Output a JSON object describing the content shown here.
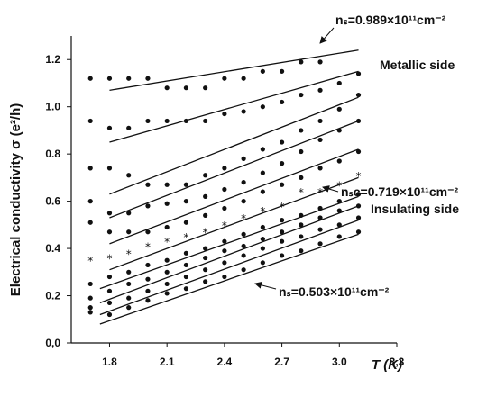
{
  "chart_data": {
    "type": "scatter",
    "xlabel": "T (K)",
    "ylabel": "Electrical conductivity σ (e²/h)",
    "xlim": [
      1.6,
      3.3
    ],
    "ylim": [
      0,
      1.3
    ],
    "x_ticks": [
      "1.8",
      "2.1",
      "2.4",
      "2.7",
      "3.0",
      "3,3"
    ],
    "y_ticks": [
      "0,0",
      "0.2",
      "0.4",
      "0.6",
      "0.8",
      "1.0",
      "1.2"
    ],
    "grid": false,
    "annotations": {
      "top_density": "nₛ=0.989×10¹¹cm⁻²",
      "metallic": "Metallic side",
      "critical_density": "nₛc=0.719×10¹¹cm⁻²",
      "insulating": "Insulating side",
      "bottom_density": "nₛ=0.503×10¹¹cm⁻²"
    },
    "x": [
      1.7,
      1.8,
      1.9,
      2.0,
      2.1,
      2.2,
      2.3,
      2.4,
      2.5,
      2.6,
      2.7,
      2.8,
      2.9,
      3.0,
      3.1
    ],
    "series": [
      {
        "marker": "dot",
        "values": [
          1.12,
          1.12,
          1.12,
          1.12,
          1.08,
          1.08,
          1.08,
          1.12,
          1.12,
          1.15,
          1.15,
          1.19,
          1.19,
          null,
          null
        ],
        "fit": [
          [
            1.8,
            1.07
          ],
          [
            3.1,
            1.24
          ]
        ]
      },
      {
        "marker": "dot",
        "values": [
          0.94,
          0.91,
          0.91,
          0.94,
          0.94,
          0.94,
          0.94,
          0.97,
          0.98,
          1.0,
          1.02,
          1.05,
          1.07,
          1.1,
          1.14
        ],
        "fit": [
          [
            1.8,
            0.85
          ],
          [
            3.1,
            1.15
          ]
        ]
      },
      {
        "marker": "dot",
        "values": [
          0.74,
          0.74,
          0.71,
          0.67,
          0.67,
          0.67,
          0.71,
          0.74,
          0.78,
          0.82,
          0.85,
          0.9,
          0.94,
          0.99,
          1.05
        ],
        "fit": [
          [
            1.8,
            0.63
          ],
          [
            3.1,
            1.04
          ]
        ]
      },
      {
        "marker": "dot",
        "values": [
          0.6,
          0.55,
          0.55,
          0.58,
          0.59,
          0.6,
          0.62,
          0.65,
          0.68,
          0.72,
          0.76,
          0.81,
          0.86,
          0.9,
          0.94
        ],
        "fit": [
          [
            1.8,
            0.53
          ],
          [
            3.1,
            0.94
          ]
        ]
      },
      {
        "marker": "dot",
        "values": [
          0.51,
          0.47,
          0.47,
          0.47,
          0.49,
          0.51,
          0.54,
          0.57,
          0.6,
          0.64,
          0.67,
          0.7,
          0.74,
          0.77,
          0.81
        ],
        "fit": [
          [
            1.8,
            0.42
          ],
          [
            3.1,
            0.82
          ]
        ]
      },
      {
        "marker": "star",
        "values": [
          0.35,
          0.36,
          0.38,
          0.41,
          0.43,
          0.45,
          0.47,
          0.5,
          0.53,
          0.56,
          0.58,
          0.64,
          0.64,
          0.67,
          0.71
        ],
        "fit": [
          [
            1.8,
            0.31
          ],
          [
            3.1,
            0.7
          ]
        ]
      },
      {
        "marker": "dot",
        "values": [
          0.25,
          0.28,
          0.3,
          0.33,
          0.35,
          0.38,
          0.4,
          0.43,
          0.46,
          0.49,
          0.52,
          0.54,
          0.57,
          0.6,
          0.63
        ],
        "fit": [
          [
            1.75,
            0.23
          ],
          [
            3.1,
            0.62
          ]
        ]
      },
      {
        "marker": "dot",
        "values": [
          0.19,
          0.22,
          0.25,
          0.27,
          0.3,
          0.33,
          0.36,
          0.39,
          0.41,
          0.44,
          0.47,
          0.5,
          0.53,
          0.56,
          0.58
        ],
        "fit": [
          [
            1.75,
            0.17
          ],
          [
            3.1,
            0.58
          ]
        ]
      },
      {
        "marker": "dot",
        "values": [
          0.15,
          0.17,
          0.19,
          0.22,
          0.25,
          0.28,
          0.31,
          0.34,
          0.37,
          0.4,
          0.43,
          0.45,
          0.48,
          0.5,
          0.53
        ],
        "fit": [
          [
            1.75,
            0.12
          ],
          [
            3.1,
            0.52
          ]
        ]
      },
      {
        "marker": "dot",
        "values": [
          0.13,
          0.12,
          0.15,
          0.18,
          0.21,
          0.23,
          0.26,
          0.28,
          0.31,
          0.34,
          0.37,
          0.39,
          0.42,
          0.45,
          0.47
        ],
        "fit": [
          [
            1.75,
            0.08
          ],
          [
            3.1,
            0.46
          ]
        ]
      }
    ]
  }
}
